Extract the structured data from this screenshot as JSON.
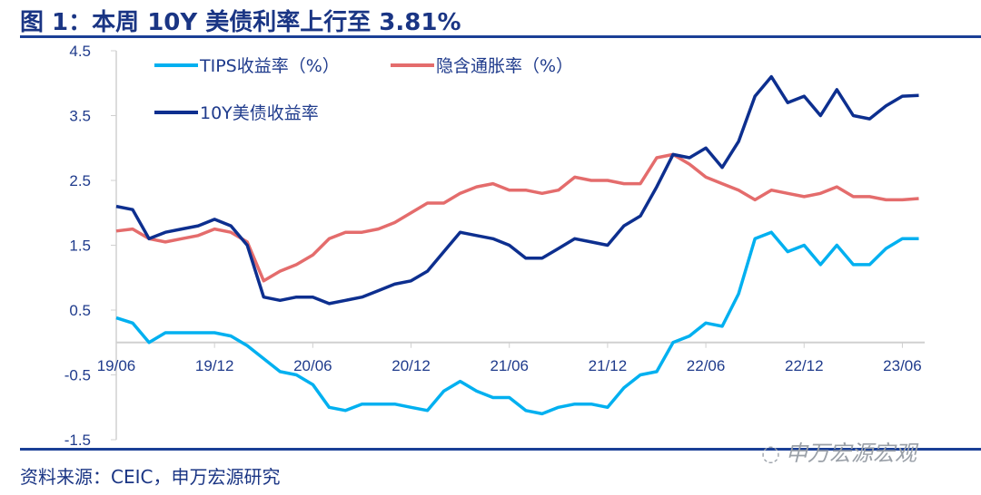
{
  "title": "图 1：本周 10Y 美债利率上行至 3.81%",
  "source": "资料来源：CEIC，申万宏源研究",
  "watermark": "申万宏源宏观",
  "chart_data": {
    "type": "line",
    "title": "图 1：本周 10Y 美债利率上行至 3.81%",
    "xlabel": "",
    "ylabel": "",
    "ylim": [
      -1.5,
      4.5
    ],
    "yticks": [
      "4.5",
      "3.5",
      "2.5",
      "1.5",
      "0.5",
      "-0.5",
      "-1.5"
    ],
    "ytick_values": [
      4.5,
      3.5,
      2.5,
      1.5,
      0.5,
      -0.5,
      -1.5
    ],
    "xticks": [
      "19/06",
      "19/12",
      "20/06",
      "20/12",
      "21/06",
      "21/12",
      "22/06",
      "22/12",
      "23/06"
    ],
    "xtick_month_index": [
      0,
      6,
      12,
      18,
      24,
      30,
      36,
      42,
      48
    ],
    "x_start": "2019-06",
    "x_step": "month",
    "legend_position": "top-left",
    "series": [
      {
        "name": "TIPS收益率（%）",
        "color": "#00B0F0",
        "values": [
          0.38,
          0.3,
          0.0,
          0.15,
          0.15,
          0.15,
          0.15,
          0.1,
          -0.05,
          -0.25,
          -0.45,
          -0.5,
          -0.65,
          -1.0,
          -1.05,
          -0.95,
          -0.95,
          -0.95,
          -1.0,
          -1.05,
          -0.75,
          -0.6,
          -0.75,
          -0.85,
          -0.85,
          -1.05,
          -1.1,
          -1.0,
          -0.95,
          -0.95,
          -1.0,
          -0.7,
          -0.5,
          -0.45,
          0.0,
          0.1,
          0.3,
          0.25,
          0.75,
          1.6,
          1.7,
          1.4,
          1.5,
          1.2,
          1.5,
          1.2,
          1.2,
          1.45,
          1.6,
          1.6
        ]
      },
      {
        "name": "隐含通胀率（%）",
        "color": "#E46C6C",
        "values": [
          1.72,
          1.75,
          1.6,
          1.55,
          1.6,
          1.65,
          1.75,
          1.7,
          1.55,
          0.95,
          1.1,
          1.2,
          1.35,
          1.6,
          1.7,
          1.7,
          1.75,
          1.85,
          2.0,
          2.15,
          2.15,
          2.3,
          2.4,
          2.45,
          2.35,
          2.35,
          2.3,
          2.35,
          2.55,
          2.5,
          2.5,
          2.45,
          2.45,
          2.85,
          2.9,
          2.75,
          2.55,
          2.45,
          2.35,
          2.2,
          2.35,
          2.3,
          2.25,
          2.3,
          2.4,
          2.25,
          2.25,
          2.2,
          2.2,
          2.22
        ]
      },
      {
        "name": "10Y美债收益率",
        "color": "#0D2F8F",
        "values": [
          2.1,
          2.05,
          1.6,
          1.7,
          1.75,
          1.8,
          1.9,
          1.8,
          1.5,
          0.7,
          0.65,
          0.7,
          0.7,
          0.6,
          0.65,
          0.7,
          0.8,
          0.9,
          0.95,
          1.1,
          1.4,
          1.7,
          1.65,
          1.6,
          1.5,
          1.3,
          1.3,
          1.45,
          1.6,
          1.55,
          1.5,
          1.8,
          1.95,
          2.4,
          2.9,
          2.85,
          3.0,
          2.7,
          3.1,
          3.8,
          4.1,
          3.7,
          3.8,
          3.5,
          3.9,
          3.5,
          3.45,
          3.65,
          3.8,
          3.81
        ]
      }
    ]
  }
}
